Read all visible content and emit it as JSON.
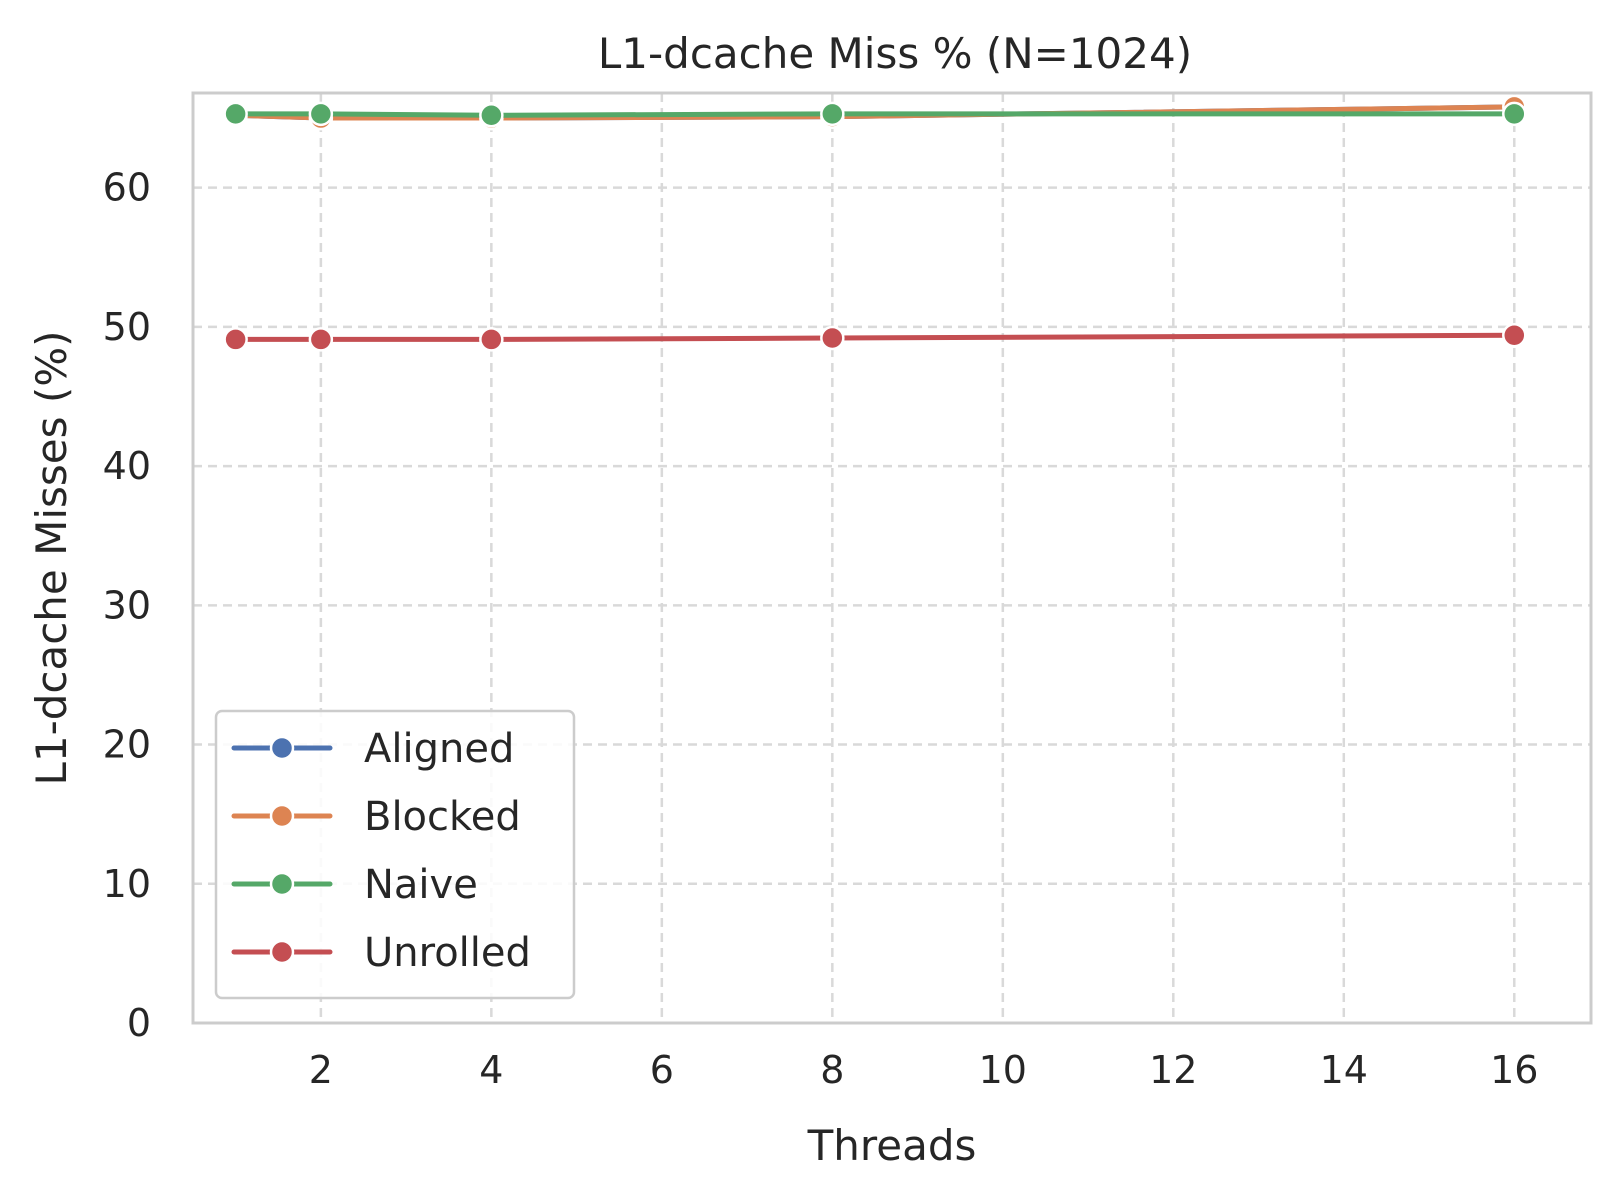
{
  "chart_data": {
    "type": "line",
    "title": "L1-dcache Miss % (N=1024)",
    "xlabel": "Threads",
    "ylabel": "L1-dcache Misses (%)",
    "xlim": [
      0.5,
      16.9
    ],
    "ylim": [
      0,
      66.8
    ],
    "xticks": [
      2,
      4,
      6,
      8,
      10,
      12,
      14,
      16
    ],
    "yticks": [
      0,
      10,
      20,
      30,
      40,
      50,
      60
    ],
    "grid": true,
    "legend_position": "lower-left",
    "x": [
      1,
      2,
      4,
      8,
      16
    ],
    "series": [
      {
        "name": "Aligned",
        "color": "#4c72b0",
        "values": [
          65.2,
          65.0,
          65.0,
          65.1,
          65.8
        ]
      },
      {
        "name": "Blocked",
        "color": "#dd8452",
        "values": [
          65.2,
          65.0,
          65.0,
          65.1,
          65.8
        ]
      },
      {
        "name": "Naive",
        "color": "#55a868",
        "values": [
          65.3,
          65.3,
          65.2,
          65.3,
          65.3
        ]
      },
      {
        "name": "Unrolled",
        "color": "#c44e52",
        "values": [
          49.1,
          49.1,
          49.1,
          49.2,
          49.4
        ]
      }
    ]
  }
}
